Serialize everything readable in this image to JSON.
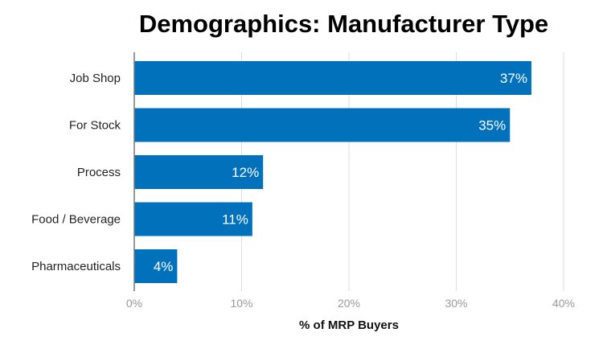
{
  "chart_data": {
    "type": "bar",
    "orientation": "horizontal",
    "title": "Demographics: Manufacturer Type",
    "xlabel": "% of MRP Buyers",
    "ylabel": "",
    "categories": [
      "Job Shop",
      "For Stock",
      "Process",
      "Food / Beverage",
      "Pharmaceuticals"
    ],
    "values": [
      37,
      35,
      12,
      11,
      4
    ],
    "data_labels": [
      "37%",
      "35%",
      "12%",
      "11%",
      "4%"
    ],
    "xlim": [
      0,
      40
    ],
    "ticks": [
      0,
      10,
      20,
      30,
      40
    ],
    "tick_labels": [
      "0%",
      "10%",
      "20%",
      "30%",
      "40%"
    ],
    "grid": "vertical",
    "legend": "none",
    "colors": {
      "bar": "#0171BB",
      "grid": "#DDDDDD",
      "axis": "#777777"
    }
  }
}
